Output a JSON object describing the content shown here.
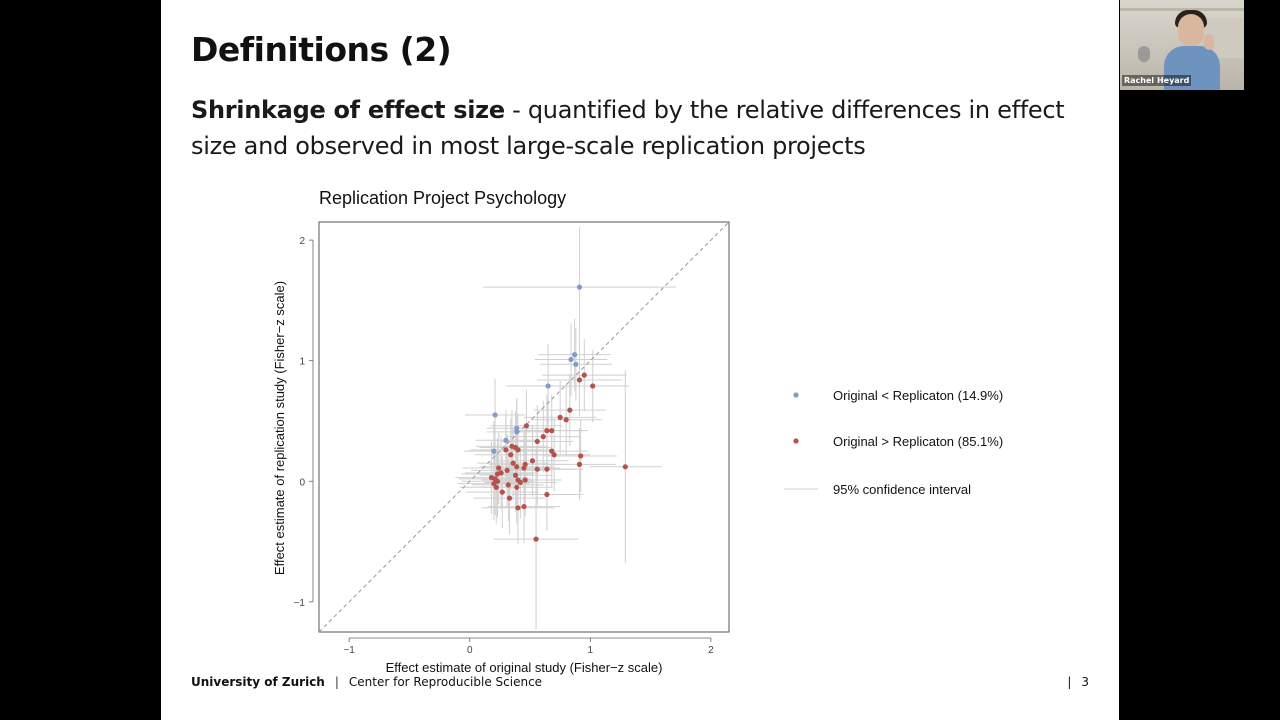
{
  "slide": {
    "title": "Definitions (2)",
    "subtitle_bold": "Shrinkage of effect size",
    "subtitle_rest": " - quantified by the relative differences in effect size and observed in most large-scale replication projects",
    "page_number": "3",
    "footer_university": "University of Zurich",
    "footer_separator": "|",
    "footer_center": "Center for Reproducible Science"
  },
  "video": {
    "participant_name": "Rachel Heyard"
  },
  "colors": {
    "blue_points": "#7f9ccb",
    "red_points": "#b5524a",
    "ci_lines": "#d0d0d0",
    "diagonal": "#999999"
  },
  "chart_data": {
    "type": "scatter",
    "title": "Replication Project Psychology",
    "xlabel": "Effect estimate of original study (Fisher−z scale)",
    "ylabel": "Effect estimate of replication study (Fisher−z scale)",
    "xlim": [
      -1.25,
      2.15
    ],
    "ylim": [
      -1.25,
      2.15
    ],
    "x_ticks": [
      -1,
      0,
      1,
      2
    ],
    "y_ticks": [
      -1,
      0,
      1,
      2
    ],
    "x_tick_labels": [
      "−1",
      "0",
      "1",
      "2"
    ],
    "y_tick_labels": [
      "−1",
      "0",
      "1",
      "2"
    ],
    "reference_line": "y = x",
    "legend": {
      "placement": "right",
      "items": [
        {
          "label": "Original <  Replicaton (14.9%)",
          "marker": "point",
          "color": "#7f9ccb"
        },
        {
          "label": "Original > Replicaton (85.1%)",
          "marker": "point",
          "color": "#b5524a"
        },
        {
          "label": "95% confidence interval",
          "marker": "line",
          "color": "#d0d0d0"
        }
      ]
    },
    "series": [
      {
        "name": "Original <  Replicaton (14.9%)",
        "color": "#7f9ccb",
        "points": [
          {
            "x": 0.91,
            "y": 1.61,
            "xlo": 0.11,
            "xhi": 1.71,
            "ylo": 1.11,
            "yhi": 2.11
          },
          {
            "x": 0.87,
            "y": 1.05,
            "xlo": 0.57,
            "xhi": 1.17,
            "ylo": 0.75,
            "yhi": 1.35
          },
          {
            "x": 0.84,
            "y": 1.01,
            "xlo": 0.54,
            "xhi": 1.14,
            "ylo": 0.71,
            "yhi": 1.31
          },
          {
            "x": 0.88,
            "y": 0.97,
            "xlo": 0.58,
            "xhi": 1.18,
            "ylo": 0.67,
            "yhi": 1.27
          },
          {
            "x": 0.65,
            "y": 0.79,
            "xlo": 0.3,
            "xhi": 1.0,
            "ylo": 0.44,
            "yhi": 1.14
          },
          {
            "x": 0.21,
            "y": 0.55,
            "xlo": -0.04,
            "xhi": 0.46,
            "ylo": 0.25,
            "yhi": 0.85
          },
          {
            "x": 0.39,
            "y": 0.44,
            "xlo": 0.14,
            "xhi": 0.64,
            "ylo": 0.19,
            "yhi": 0.69
          },
          {
            "x": 0.39,
            "y": 0.41,
            "xlo": 0.14,
            "xhi": 0.64,
            "ylo": 0.16,
            "yhi": 0.66
          },
          {
            "x": 0.3,
            "y": 0.34,
            "xlo": 0.05,
            "xhi": 0.55,
            "ylo": 0.09,
            "yhi": 0.59
          },
          {
            "x": 0.2,
            "y": 0.25,
            "xlo": -0.05,
            "xhi": 0.45,
            "ylo": 0.0,
            "yhi": 0.5
          }
        ]
      },
      {
        "name": "Original > Replicaton (85.1%)",
        "color": "#b5524a",
        "points": [
          {
            "x": 0.95,
            "y": 0.88,
            "xlo": 0.6,
            "xhi": 1.3,
            "ylo": 0.58,
            "yhi": 1.18
          },
          {
            "x": 0.91,
            "y": 0.84,
            "xlo": 0.56,
            "xhi": 1.26,
            "ylo": 0.54,
            "yhi": 1.14
          },
          {
            "x": 1.02,
            "y": 0.79,
            "xlo": 0.72,
            "xhi": 1.32,
            "ylo": 0.49,
            "yhi": 1.09
          },
          {
            "x": 0.83,
            "y": 0.59,
            "xlo": 0.53,
            "xhi": 1.13,
            "ylo": 0.29,
            "yhi": 0.89
          },
          {
            "x": 0.75,
            "y": 0.53,
            "xlo": 0.45,
            "xhi": 1.05,
            "ylo": 0.23,
            "yhi": 0.83
          },
          {
            "x": 0.8,
            "y": 0.51,
            "xlo": 0.5,
            "xhi": 1.1,
            "ylo": 0.21,
            "yhi": 0.81
          },
          {
            "x": 0.47,
            "y": 0.46,
            "xlo": 0.17,
            "xhi": 0.77,
            "ylo": 0.16,
            "yhi": 0.76
          },
          {
            "x": 0.64,
            "y": 0.42,
            "xlo": 0.34,
            "xhi": 0.94,
            "ylo": 0.12,
            "yhi": 0.72
          },
          {
            "x": 0.68,
            "y": 0.42,
            "xlo": 0.38,
            "xhi": 0.98,
            "ylo": 0.12,
            "yhi": 0.72
          },
          {
            "x": 0.61,
            "y": 0.37,
            "xlo": 0.31,
            "xhi": 0.91,
            "ylo": 0.07,
            "yhi": 0.67
          },
          {
            "x": 0.56,
            "y": 0.33,
            "xlo": 0.26,
            "xhi": 0.86,
            "ylo": 0.03,
            "yhi": 0.63
          },
          {
            "x": 0.35,
            "y": 0.29,
            "xlo": 0.05,
            "xhi": 0.65,
            "ylo": -0.01,
            "yhi": 0.59
          },
          {
            "x": 0.38,
            "y": 0.28,
            "xlo": 0.08,
            "xhi": 0.68,
            "ylo": -0.02,
            "yhi": 0.58
          },
          {
            "x": 0.4,
            "y": 0.26,
            "xlo": 0.1,
            "xhi": 0.7,
            "ylo": -0.04,
            "yhi": 0.56
          },
          {
            "x": 0.3,
            "y": 0.26,
            "xlo": 0.0,
            "xhi": 0.6,
            "ylo": -0.04,
            "yhi": 0.56
          },
          {
            "x": 0.68,
            "y": 0.25,
            "xlo": 0.38,
            "xhi": 0.98,
            "ylo": -0.05,
            "yhi": 0.55
          },
          {
            "x": 0.7,
            "y": 0.22,
            "xlo": 0.4,
            "xhi": 1.0,
            "ylo": -0.08,
            "yhi": 0.52
          },
          {
            "x": 0.92,
            "y": 0.21,
            "xlo": 0.62,
            "xhi": 1.22,
            "ylo": -0.09,
            "yhi": 0.51
          },
          {
            "x": 0.34,
            "y": 0.22,
            "xlo": 0.04,
            "xhi": 0.64,
            "ylo": -0.08,
            "yhi": 0.52
          },
          {
            "x": 0.52,
            "y": 0.17,
            "xlo": 0.22,
            "xhi": 0.82,
            "ylo": -0.13,
            "yhi": 0.47
          },
          {
            "x": 0.36,
            "y": 0.15,
            "xlo": 0.06,
            "xhi": 0.66,
            "ylo": -0.15,
            "yhi": 0.45
          },
          {
            "x": 0.46,
            "y": 0.14,
            "xlo": 0.16,
            "xhi": 0.76,
            "ylo": -0.16,
            "yhi": 0.44
          },
          {
            "x": 0.91,
            "y": 0.14,
            "xlo": 0.61,
            "xhi": 1.21,
            "ylo": -0.16,
            "yhi": 0.44
          },
          {
            "x": 0.39,
            "y": 0.12,
            "xlo": 0.09,
            "xhi": 0.69,
            "ylo": -0.18,
            "yhi": 0.42
          },
          {
            "x": 1.29,
            "y": 0.12,
            "xlo": 0.99,
            "xhi": 1.59,
            "ylo": -0.68,
            "yhi": 0.92
          },
          {
            "x": 0.45,
            "y": 0.11,
            "xlo": 0.15,
            "xhi": 0.75,
            "ylo": -0.19,
            "yhi": 0.41
          },
          {
            "x": 0.24,
            "y": 0.11,
            "xlo": -0.06,
            "xhi": 0.54,
            "ylo": -0.19,
            "yhi": 0.41
          },
          {
            "x": 0.56,
            "y": 0.1,
            "xlo": 0.26,
            "xhi": 0.86,
            "ylo": -0.2,
            "yhi": 0.4
          },
          {
            "x": 0.64,
            "y": 0.1,
            "xlo": 0.34,
            "xhi": 0.94,
            "ylo": -0.2,
            "yhi": 0.4
          },
          {
            "x": 0.31,
            "y": 0.09,
            "xlo": 0.01,
            "xhi": 0.61,
            "ylo": -0.21,
            "yhi": 0.39
          },
          {
            "x": 0.26,
            "y": 0.07,
            "xlo": -0.04,
            "xhi": 0.56,
            "ylo": -0.23,
            "yhi": 0.37
          },
          {
            "x": 0.23,
            "y": 0.06,
            "xlo": -0.07,
            "xhi": 0.53,
            "ylo": -0.24,
            "yhi": 0.36
          },
          {
            "x": 0.38,
            "y": 0.05,
            "xlo": 0.08,
            "xhi": 0.68,
            "ylo": -0.25,
            "yhi": 0.35
          },
          {
            "x": 0.18,
            "y": 0.03,
            "xlo": -0.12,
            "xhi": 0.48,
            "ylo": -0.27,
            "yhi": 0.33
          },
          {
            "x": 0.21,
            "y": 0.02,
            "xlo": -0.09,
            "xhi": 0.51,
            "ylo": -0.28,
            "yhi": 0.32
          },
          {
            "x": 0.4,
            "y": 0.01,
            "xlo": 0.1,
            "xhi": 0.7,
            "ylo": -0.29,
            "yhi": 0.31
          },
          {
            "x": 0.46,
            "y": 0.01,
            "xlo": 0.16,
            "xhi": 0.76,
            "ylo": -0.29,
            "yhi": 0.31
          },
          {
            "x": 0.23,
            "y": 0.0,
            "xlo": -0.07,
            "xhi": 0.53,
            "ylo": -0.3,
            "yhi": 0.3
          },
          {
            "x": 0.42,
            "y": -0.01,
            "xlo": 0.12,
            "xhi": 0.72,
            "ylo": -0.31,
            "yhi": 0.29
          },
          {
            "x": 0.2,
            "y": -0.02,
            "xlo": -0.1,
            "xhi": 0.5,
            "ylo": -0.32,
            "yhi": 0.28
          },
          {
            "x": 0.32,
            "y": -0.03,
            "xlo": 0.02,
            "xhi": 0.62,
            "ylo": -0.33,
            "yhi": 0.27
          },
          {
            "x": 0.22,
            "y": -0.05,
            "xlo": -0.08,
            "xhi": 0.52,
            "ylo": -0.35,
            "yhi": 0.25
          },
          {
            "x": 0.39,
            "y": -0.05,
            "xlo": 0.09,
            "xhi": 0.69,
            "ylo": -0.35,
            "yhi": 0.25
          },
          {
            "x": 0.27,
            "y": -0.09,
            "xlo": -0.03,
            "xhi": 0.57,
            "ylo": -0.39,
            "yhi": 0.21
          },
          {
            "x": 0.64,
            "y": -0.11,
            "xlo": 0.34,
            "xhi": 0.94,
            "ylo": -0.41,
            "yhi": 0.19
          },
          {
            "x": 0.33,
            "y": -0.14,
            "xlo": 0.03,
            "xhi": 0.63,
            "ylo": -0.44,
            "yhi": 0.16
          },
          {
            "x": 0.45,
            "y": -0.21,
            "xlo": 0.15,
            "xhi": 0.75,
            "ylo": -0.51,
            "yhi": 0.09
          },
          {
            "x": 0.4,
            "y": -0.22,
            "xlo": 0.1,
            "xhi": 0.7,
            "ylo": -0.52,
            "yhi": 0.08
          },
          {
            "x": 0.55,
            "y": -0.48,
            "xlo": 0.2,
            "xhi": 0.9,
            "ylo": -1.23,
            "yhi": 0.27
          }
        ]
      }
    ]
  }
}
